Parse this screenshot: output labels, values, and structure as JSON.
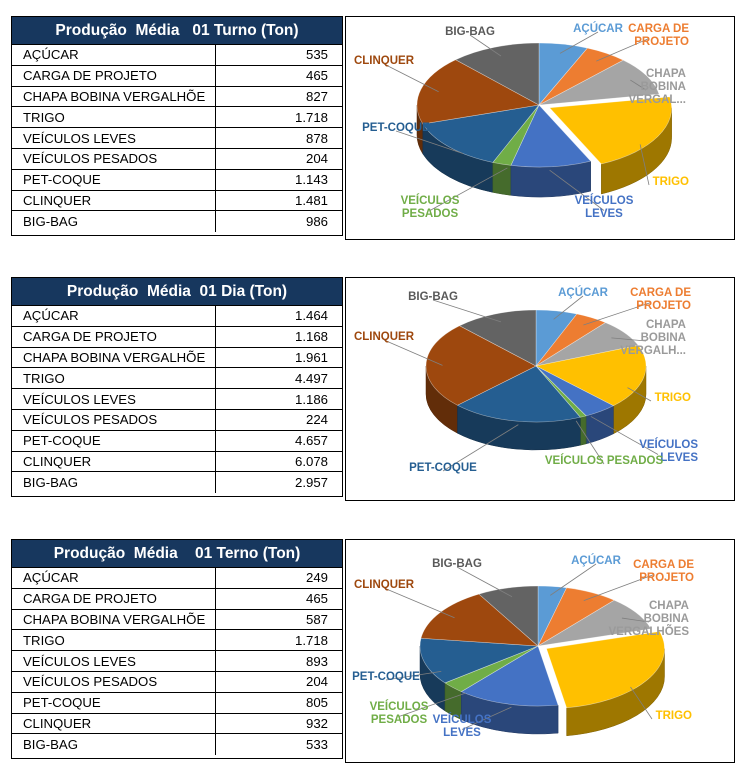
{
  "colors": {
    "header_bg": "#17375e",
    "ACUCAR": "#5b9bd5",
    "CARGA": "#ed7d31",
    "CHAPA": "#a5a5a5",
    "TRIGO": "#ffc000",
    "LEVES": "#4472c4",
    "PESADOS": "#70ad47",
    "PETCOQUE": "#255e91",
    "CLINQUER": "#9e480e",
    "BIGBAG": "#636363"
  },
  "chart_data": [
    {
      "type": "pie",
      "title": "Produção  Média   01 Turno (Ton)",
      "categories": [
        "AÇÚCAR",
        "CARGA DE PROJETO",
        "CHAPA BOBINA VERGALHÕE",
        "TRIGO",
        "VEÍCULOS LEVES",
        "VEÍCULOS PESADOS",
        "PET-COQUE",
        "CLINQUER",
        "BIG-BAG"
      ],
      "values": [
        535,
        465,
        827,
        1718,
        878,
        204,
        1143,
        1481,
        986
      ],
      "display_values": [
        "535",
        "465",
        "827",
        "1.718",
        "878",
        "204",
        "1.143",
        "1.481",
        "986"
      ],
      "pie_labels": [
        "AÇÚCAR",
        "CARGA DE PROJETO",
        "CHAPA BOBINA VERGAL...",
        "TRIGO",
        "VEÍCULOS LEVES",
        "VEÍCULOS PESADOS",
        "PET-COQUE",
        "CLINQUER",
        "BIG-BAG"
      ]
    },
    {
      "type": "pie",
      "title": "Produção  Média  01 Dia (Ton)",
      "categories": [
        "AÇÚCAR",
        "CARGA DE PROJETO",
        "CHAPA BOBINA VERGALHÕE",
        "TRIGO",
        "VEÍCULOS LEVES",
        "VEÍCULOS PESADOS",
        "PET-COQUE",
        "CLINQUER",
        "BIG-BAG"
      ],
      "values": [
        1464,
        1168,
        1961,
        4497,
        1186,
        224,
        4657,
        6078,
        2957
      ],
      "display_values": [
        "1.464",
        "1.168",
        "1.961",
        "4.497",
        "1.186",
        "224",
        "4.657",
        "6.078",
        "2.957"
      ],
      "pie_labels": [
        "AÇÚCAR",
        "CARGA DE PROJETO",
        "CHAPA BOBINA VERGALH...",
        "TRIGO",
        "VEÍCULOS LEVES",
        "VEÍCULOS PESADOS",
        "PET-COQUE",
        "CLINQUER",
        "BIG-BAG"
      ]
    },
    {
      "type": "pie",
      "title": "Produção  Média    01 Terno (Ton)",
      "categories": [
        "AÇÚCAR",
        "CARGA DE PROJETO",
        "CHAPA BOBINA VERGALHÕE",
        "TRIGO",
        "VEÍCULOS LEVES",
        "VEÍCULOS PESADOS",
        "PET-COQUE",
        "CLINQUER",
        "BIG-BAG"
      ],
      "values": [
        249,
        465,
        587,
        1718,
        893,
        204,
        805,
        932,
        533
      ],
      "display_values": [
        "249",
        "465",
        "587",
        "1.718",
        "893",
        "204",
        "805",
        "932",
        "533"
      ],
      "pie_labels": [
        "AÇÚCAR",
        "CARGA DE PROJETO",
        "CHAPA BOBINA VERGALHÕES",
        "TRIGO",
        "VEÍCULOS LEVES",
        "VEÍCULOS PESADOS",
        "PET-COQUE",
        "CLINQUER",
        "BIG-BAG"
      ]
    }
  ]
}
